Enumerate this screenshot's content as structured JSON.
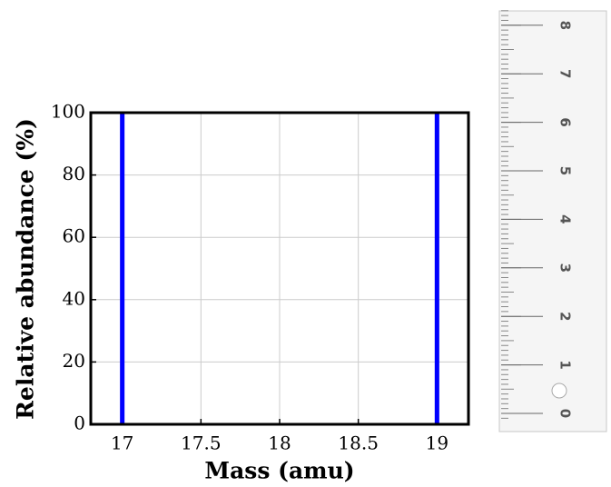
{
  "chart_data": {
    "type": "stem",
    "x_label": "Mass (amu)",
    "y_label": "Relative abundance (%)",
    "series": [
      {
        "x": [
          17,
          19
        ],
        "values": [
          100,
          100
        ],
        "color": "#0000ff"
      }
    ],
    "xlim": [
      16.8,
      19.2
    ],
    "xticks": [
      17,
      17.5,
      18,
      18.5,
      19
    ],
    "ylim": [
      0,
      100
    ],
    "yticks": [
      0,
      20,
      40,
      60,
      80,
      100
    ],
    "grid": true
  },
  "ruler": {
    "ticks": [
      0,
      1,
      2,
      3,
      4,
      5,
      6,
      7,
      8
    ]
  }
}
